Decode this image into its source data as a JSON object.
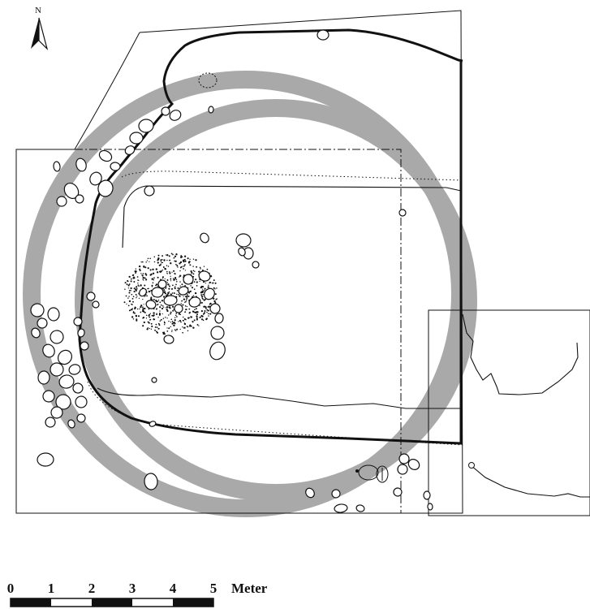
{
  "north_label": "N",
  "scale_bar": {
    "ticks": [
      "0",
      "1",
      "2",
      "3",
      "4",
      "5"
    ],
    "unit": "Meter"
  },
  "colors": {
    "ink": "#111111",
    "ring": "#a9a9a9",
    "background": "#ffffff"
  }
}
